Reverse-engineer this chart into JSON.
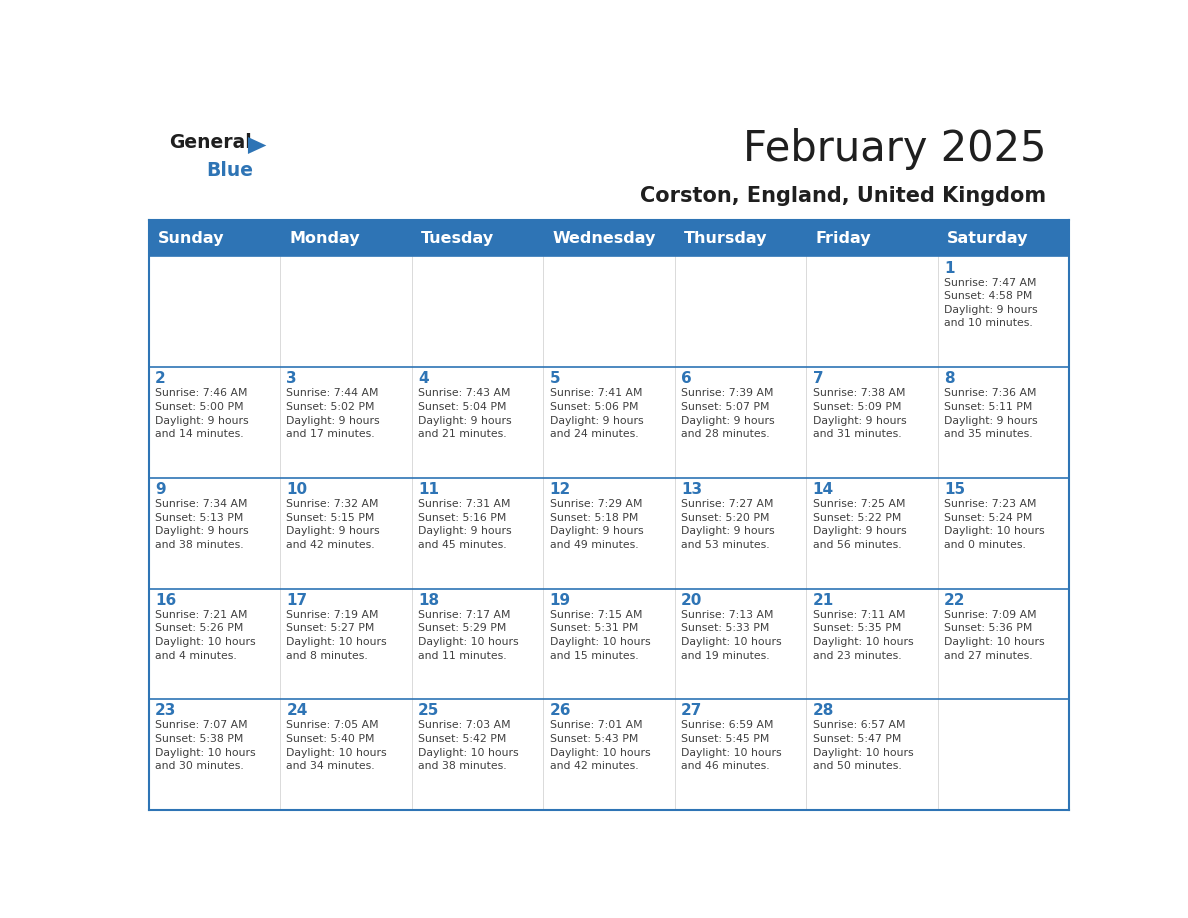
{
  "title": "February 2025",
  "subtitle": "Corston, England, United Kingdom",
  "header_bg": "#2E74B5",
  "header_text_color": "#FFFFFF",
  "cell_bg_white": "#FFFFFF",
  "border_color": "#2E74B5",
  "row_divider_color": "#2E74B5",
  "col_divider_color": "#CCCCCC",
  "days_of_week": [
    "Sunday",
    "Monday",
    "Tuesday",
    "Wednesday",
    "Thursday",
    "Friday",
    "Saturday"
  ],
  "title_color": "#1F1F1F",
  "subtitle_color": "#1F1F1F",
  "day_num_color": "#2E74B5",
  "cell_text_color": "#404040",
  "logo_general_color": "#1F1F1F",
  "logo_blue_color": "#2E74B5",
  "weeks": [
    [
      {
        "day": null,
        "info": null
      },
      {
        "day": null,
        "info": null
      },
      {
        "day": null,
        "info": null
      },
      {
        "day": null,
        "info": null
      },
      {
        "day": null,
        "info": null
      },
      {
        "day": null,
        "info": null
      },
      {
        "day": 1,
        "info": "Sunrise: 7:47 AM\nSunset: 4:58 PM\nDaylight: 9 hours\nand 10 minutes."
      }
    ],
    [
      {
        "day": 2,
        "info": "Sunrise: 7:46 AM\nSunset: 5:00 PM\nDaylight: 9 hours\nand 14 minutes."
      },
      {
        "day": 3,
        "info": "Sunrise: 7:44 AM\nSunset: 5:02 PM\nDaylight: 9 hours\nand 17 minutes."
      },
      {
        "day": 4,
        "info": "Sunrise: 7:43 AM\nSunset: 5:04 PM\nDaylight: 9 hours\nand 21 minutes."
      },
      {
        "day": 5,
        "info": "Sunrise: 7:41 AM\nSunset: 5:06 PM\nDaylight: 9 hours\nand 24 minutes."
      },
      {
        "day": 6,
        "info": "Sunrise: 7:39 AM\nSunset: 5:07 PM\nDaylight: 9 hours\nand 28 minutes."
      },
      {
        "day": 7,
        "info": "Sunrise: 7:38 AM\nSunset: 5:09 PM\nDaylight: 9 hours\nand 31 minutes."
      },
      {
        "day": 8,
        "info": "Sunrise: 7:36 AM\nSunset: 5:11 PM\nDaylight: 9 hours\nand 35 minutes."
      }
    ],
    [
      {
        "day": 9,
        "info": "Sunrise: 7:34 AM\nSunset: 5:13 PM\nDaylight: 9 hours\nand 38 minutes."
      },
      {
        "day": 10,
        "info": "Sunrise: 7:32 AM\nSunset: 5:15 PM\nDaylight: 9 hours\nand 42 minutes."
      },
      {
        "day": 11,
        "info": "Sunrise: 7:31 AM\nSunset: 5:16 PM\nDaylight: 9 hours\nand 45 minutes."
      },
      {
        "day": 12,
        "info": "Sunrise: 7:29 AM\nSunset: 5:18 PM\nDaylight: 9 hours\nand 49 minutes."
      },
      {
        "day": 13,
        "info": "Sunrise: 7:27 AM\nSunset: 5:20 PM\nDaylight: 9 hours\nand 53 minutes."
      },
      {
        "day": 14,
        "info": "Sunrise: 7:25 AM\nSunset: 5:22 PM\nDaylight: 9 hours\nand 56 minutes."
      },
      {
        "day": 15,
        "info": "Sunrise: 7:23 AM\nSunset: 5:24 PM\nDaylight: 10 hours\nand 0 minutes."
      }
    ],
    [
      {
        "day": 16,
        "info": "Sunrise: 7:21 AM\nSunset: 5:26 PM\nDaylight: 10 hours\nand 4 minutes."
      },
      {
        "day": 17,
        "info": "Sunrise: 7:19 AM\nSunset: 5:27 PM\nDaylight: 10 hours\nand 8 minutes."
      },
      {
        "day": 18,
        "info": "Sunrise: 7:17 AM\nSunset: 5:29 PM\nDaylight: 10 hours\nand 11 minutes."
      },
      {
        "day": 19,
        "info": "Sunrise: 7:15 AM\nSunset: 5:31 PM\nDaylight: 10 hours\nand 15 minutes."
      },
      {
        "day": 20,
        "info": "Sunrise: 7:13 AM\nSunset: 5:33 PM\nDaylight: 10 hours\nand 19 minutes."
      },
      {
        "day": 21,
        "info": "Sunrise: 7:11 AM\nSunset: 5:35 PM\nDaylight: 10 hours\nand 23 minutes."
      },
      {
        "day": 22,
        "info": "Sunrise: 7:09 AM\nSunset: 5:36 PM\nDaylight: 10 hours\nand 27 minutes."
      }
    ],
    [
      {
        "day": 23,
        "info": "Sunrise: 7:07 AM\nSunset: 5:38 PM\nDaylight: 10 hours\nand 30 minutes."
      },
      {
        "day": 24,
        "info": "Sunrise: 7:05 AM\nSunset: 5:40 PM\nDaylight: 10 hours\nand 34 minutes."
      },
      {
        "day": 25,
        "info": "Sunrise: 7:03 AM\nSunset: 5:42 PM\nDaylight: 10 hours\nand 38 minutes."
      },
      {
        "day": 26,
        "info": "Sunrise: 7:01 AM\nSunset: 5:43 PM\nDaylight: 10 hours\nand 42 minutes."
      },
      {
        "day": 27,
        "info": "Sunrise: 6:59 AM\nSunset: 5:45 PM\nDaylight: 10 hours\nand 46 minutes."
      },
      {
        "day": 28,
        "info": "Sunrise: 6:57 AM\nSunset: 5:47 PM\nDaylight: 10 hours\nand 50 minutes."
      },
      {
        "day": null,
        "info": null
      }
    ]
  ]
}
